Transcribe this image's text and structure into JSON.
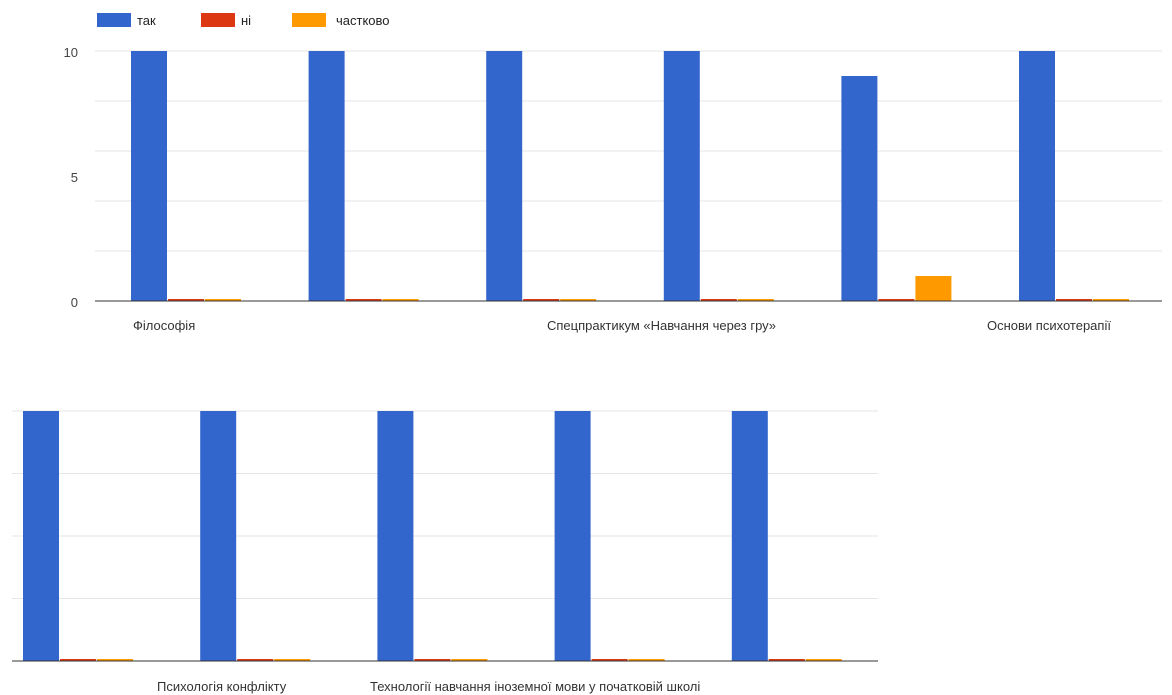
{
  "chart_data": {
    "type": "bar",
    "legend": {
      "position": "top-left",
      "items": [
        {
          "label": "так",
          "color": "#3366cc"
        },
        {
          "label": "ні",
          "color": "#dc3912"
        },
        {
          "label": "частково",
          "color": "#ff9900"
        }
      ]
    },
    "y_ticks": [
      "0",
      "5",
      "10"
    ],
    "ylim": [
      0,
      10
    ],
    "grid": true,
    "panels": [
      {
        "categories": [
          "Філософія",
          "",
          "",
          "Спецпрактикум «Навчання через гру»",
          "",
          "Основи психотерапії"
        ],
        "series": [
          {
            "name": "так",
            "values": [
              10,
              10,
              10,
              10,
              9,
              10
            ]
          },
          {
            "name": "ні",
            "values": [
              0,
              0,
              0,
              0,
              0,
              0
            ]
          },
          {
            "name": "частково",
            "values": [
              0,
              0,
              0,
              0,
              1,
              0
            ]
          }
        ]
      },
      {
        "categories": [
          "",
          "Психологія конфлікту",
          "",
          "Технології навчання іноземної мови у початковій школі",
          ""
        ],
        "series": [
          {
            "name": "так",
            "values": [
              10,
              10,
              10,
              10,
              10
            ]
          },
          {
            "name": "ні",
            "values": [
              0,
              0,
              0,
              0,
              0
            ]
          },
          {
            "name": "частково",
            "values": [
              0,
              0,
              0,
              0,
              0
            ]
          }
        ]
      }
    ]
  }
}
